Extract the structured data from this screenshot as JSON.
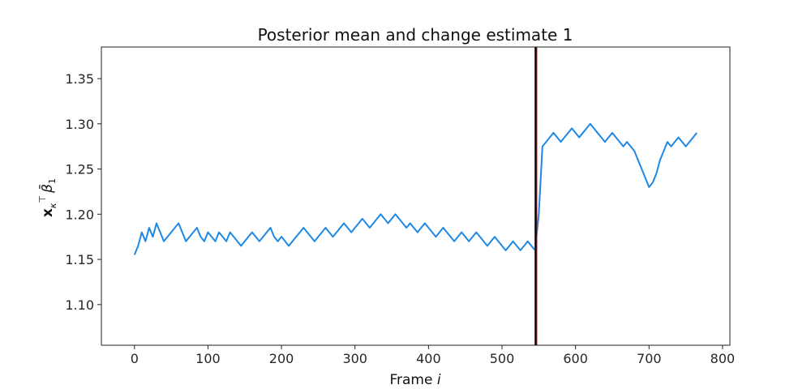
{
  "chart_data": {
    "type": "line",
    "title": "Posterior mean and change estimate 1",
    "xlabel": "Frame i",
    "xlabel_main": "Frame",
    "xlabel_var": "i",
    "ylabel_main": "x",
    "ylabel_sub": "κ",
    "ylabel_sup": "⊤",
    "ylabel_beta": "β̄",
    "ylabel_beta_sub": "1",
    "xlim": [
      -45,
      810
    ],
    "ylim": [
      1.055,
      1.385
    ],
    "xticks": [
      0,
      100,
      200,
      300,
      400,
      500,
      600,
      700,
      800
    ],
    "yticks": [
      1.1,
      1.15,
      1.2,
      1.25,
      1.3,
      1.35
    ],
    "xtick_labels": [
      "0",
      "100",
      "200",
      "300",
      "400",
      "500",
      "600",
      "700",
      "800"
    ],
    "ytick_labels": [
      "1.10",
      "1.15",
      "1.20",
      "1.25",
      "1.30",
      "1.35"
    ],
    "change_point": 546,
    "series_color": "#1e88e5",
    "change_line_color": "#000000",
    "change_line_edge": "#b71c1c",
    "series": [
      {
        "x_start": 0,
        "x_step": 5,
        "values": [
          1.155,
          1.165,
          1.18,
          1.17,
          1.185,
          1.175,
          1.19,
          1.18,
          1.17,
          1.175,
          1.18,
          1.185,
          1.19,
          1.18,
          1.17,
          1.175,
          1.18,
          1.185,
          1.175,
          1.17,
          1.18,
          1.175,
          1.17,
          1.18,
          1.175,
          1.17,
          1.18,
          1.175,
          1.17,
          1.165,
          1.17,
          1.175,
          1.18,
          1.175,
          1.17,
          1.175,
          1.18,
          1.185,
          1.175,
          1.17,
          1.175,
          1.17,
          1.165,
          1.17,
          1.175,
          1.18,
          1.185,
          1.18,
          1.175,
          1.17,
          1.175,
          1.18,
          1.185,
          1.18,
          1.175,
          1.18,
          1.185,
          1.19,
          1.185,
          1.18,
          1.185,
          1.19,
          1.195,
          1.19,
          1.185,
          1.19,
          1.195,
          1.2,
          1.195,
          1.19,
          1.195,
          1.2,
          1.195,
          1.19,
          1.185,
          1.19,
          1.185,
          1.18,
          1.185,
          1.19,
          1.185,
          1.18,
          1.175,
          1.18,
          1.185,
          1.18,
          1.175,
          1.17,
          1.175,
          1.18,
          1.175,
          1.17,
          1.175,
          1.18,
          1.175,
          1.17,
          1.165,
          1.17,
          1.175,
          1.17,
          1.165,
          1.16,
          1.165,
          1.17,
          1.165,
          1.16,
          1.165,
          1.17,
          1.165,
          1.16,
          1.2,
          1.275,
          1.28,
          1.285,
          1.29,
          1.285,
          1.28,
          1.285,
          1.29,
          1.295,
          1.29,
          1.285,
          1.29,
          1.295,
          1.3,
          1.295,
          1.29,
          1.285,
          1.28,
          1.285,
          1.29,
          1.285,
          1.28,
          1.275,
          1.28,
          1.275,
          1.27,
          1.26,
          1.25,
          1.24,
          1.23,
          1.235,
          1.245,
          1.26,
          1.27,
          1.28,
          1.275,
          1.28,
          1.285,
          1.28,
          1.275,
          1.28,
          1.285,
          1.29
        ]
      }
    ]
  }
}
